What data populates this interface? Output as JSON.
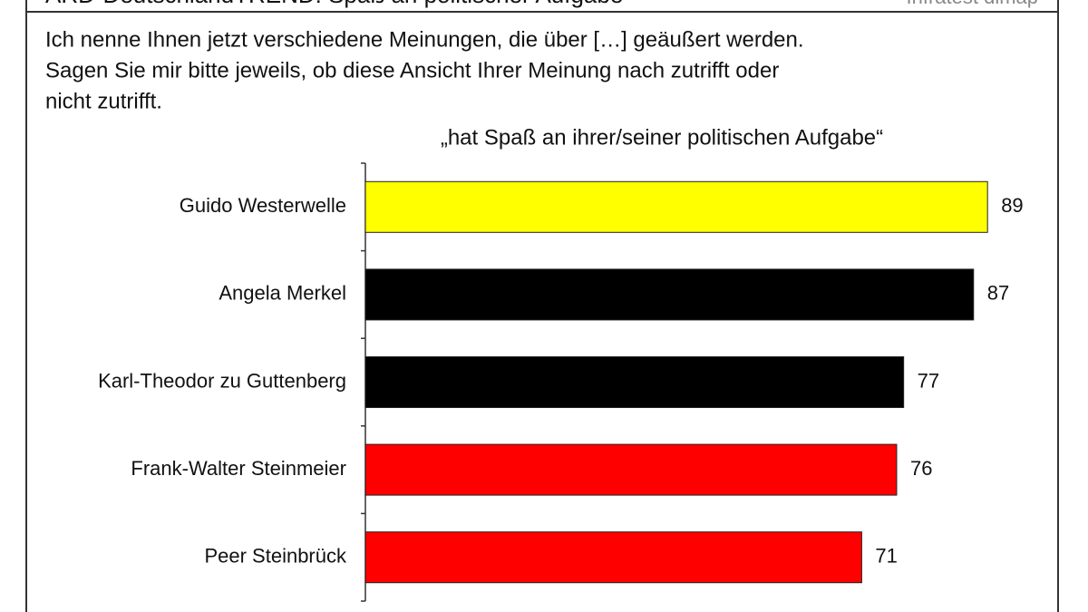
{
  "chart_data": {
    "type": "bar",
    "orientation": "horizontal",
    "title": "ARD-DeutschlandTREND: Spaß an politischer Aufgabe",
    "source": "Infratest dimap",
    "question": [
      "Ich nenne Ihnen jetzt verschiedene Meinungen, die über […] geäußert werden.",
      "Sagen Sie mir bitte jeweils, ob diese Ansicht Ihrer Meinung nach zutrifft oder",
      "nicht zutrifft."
    ],
    "subtitle": "„hat Spaß an ihrer/seiner politischen Aufgabe“",
    "categories": [
      "Guido Westerwelle",
      "Angela Merkel",
      "Karl-Theodor zu Guttenberg",
      "Frank-Walter Steinmeier",
      "Peer Steinbrück"
    ],
    "values": [
      89,
      87,
      77,
      76,
      71
    ],
    "colors": [
      "#ffff00",
      "#000000",
      "#000000",
      "#ff0000",
      "#ff0000"
    ],
    "xlim": [
      0,
      100
    ]
  }
}
